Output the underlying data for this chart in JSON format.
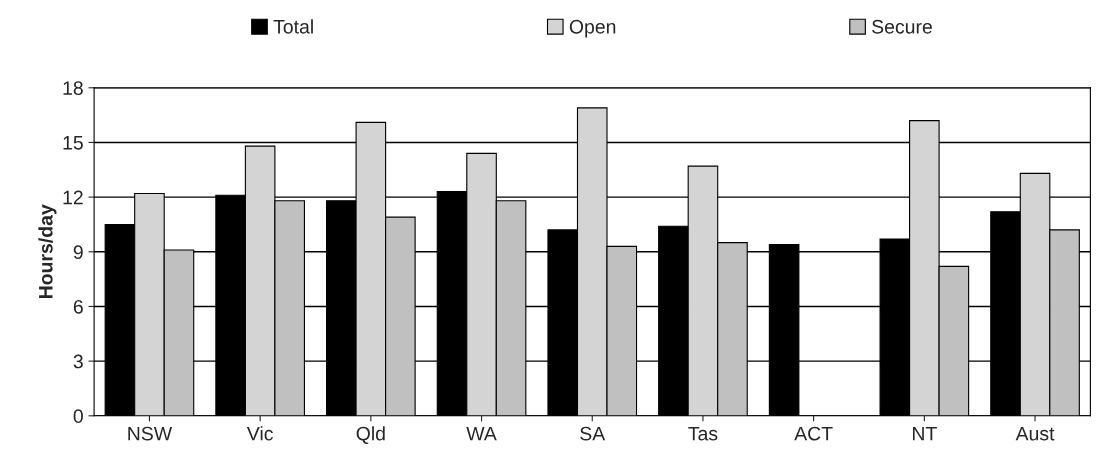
{
  "chart_data": {
    "type": "bar",
    "ylabel": "Hours/day",
    "categories": [
      "NSW",
      "Vic",
      "Qld",
      "WA",
      "SA",
      "Tas",
      "ACT",
      "NT",
      "Aust"
    ],
    "series": [
      {
        "name": "Total",
        "color": "#000000",
        "values": [
          10.5,
          12.1,
          11.8,
          12.3,
          10.2,
          10.4,
          9.4,
          9.7,
          11.2
        ]
      },
      {
        "name": "Open",
        "color": "#d4d4d4",
        "values": [
          12.2,
          14.8,
          16.1,
          14.4,
          16.9,
          13.7,
          null,
          16.2,
          13.3
        ]
      },
      {
        "name": "Secure",
        "color": "#c0c0c0",
        "values": [
          9.1,
          11.8,
          10.9,
          11.8,
          9.3,
          9.5,
          null,
          8.2,
          10.2
        ]
      }
    ],
    "ylim": [
      0,
      18
    ],
    "yticks": [
      0,
      3,
      6,
      9,
      12,
      15,
      18
    ],
    "grid": "y",
    "legend": "top"
  }
}
